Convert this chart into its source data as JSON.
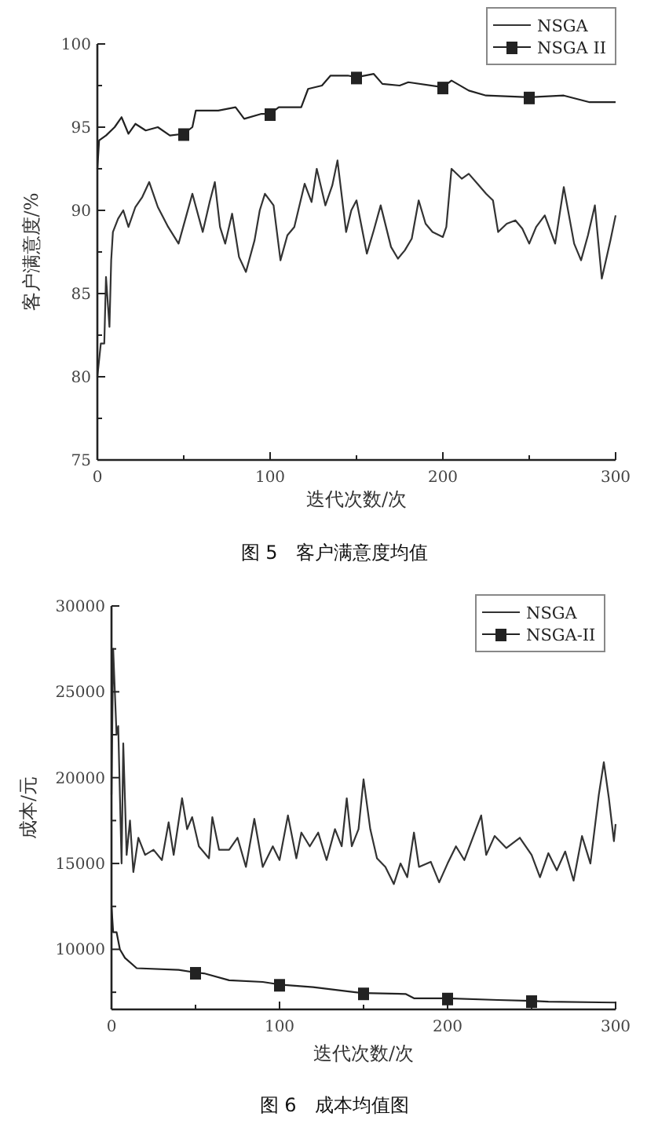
{
  "chart_data": [
    {
      "type": "line",
      "xlabel": "迭代次数/次",
      "ylabel": "客户满意度/%",
      "annotations": [
        "图 5　客户满意度均值"
      ],
      "xlim": [
        0,
        300
      ],
      "ylim": [
        75,
        100
      ],
      "xticks": [
        0,
        {
          "value": 50,
          "label": null
        },
        100,
        {
          "value": 150,
          "label": null
        },
        200,
        {
          "value": 250,
          "label": null
        },
        300
      ],
      "yticks": [
        75,
        {
          "value": 77.5,
          "label": null
        },
        80,
        {
          "value": 82.5,
          "label": null
        },
        85,
        {
          "value": 87.5,
          "label": null
        },
        90,
        {
          "value": 92.5,
          "label": null
        },
        95,
        {
          "value": 97.5,
          "label": null
        },
        100
      ],
      "legend": "top right",
      "grid": false,
      "series": [
        {
          "name": "NSGA",
          "color": "#333333",
          "x": [
            0,
            2,
            4,
            5,
            7,
            8,
            9,
            12,
            15,
            18,
            22,
            26,
            30,
            35,
            41,
            47,
            51,
            55,
            61,
            65,
            68,
            71,
            74,
            78,
            82,
            86,
            91,
            94,
            97,
            102,
            106,
            110,
            114,
            120,
            124,
            127,
            132,
            136,
            139,
            144,
            147,
            150,
            153,
            156,
            160,
            164,
            170,
            174,
            178,
            182,
            186,
            190,
            194,
            200,
            202,
            205,
            211,
            215,
            220,
            225,
            229,
            232,
            237,
            242,
            246,
            250,
            254,
            259,
            265,
            270,
            276,
            280,
            284,
            288,
            292,
            297,
            300
          ],
          "values": [
            80,
            82,
            82,
            86,
            83,
            87,
            88.7,
            89.5,
            90,
            89,
            90.2,
            90.8,
            91.7,
            90.2,
            89,
            88,
            89.5,
            91,
            88.7,
            90.5,
            91.7,
            89,
            88,
            89.8,
            87.2,
            86.3,
            88.2,
            90,
            91,
            90.3,
            87,
            88.5,
            89,
            91.6,
            90.5,
            92.5,
            90.3,
            91.5,
            93,
            88.7,
            90,
            90.6,
            89,
            87.4,
            88.8,
            90.3,
            87.8,
            87.1,
            87.6,
            88.3,
            90.6,
            89.2,
            88.7,
            88.4,
            89,
            92.5,
            91.9,
            92.2,
            91.6,
            91,
            90.6,
            88.7,
            89.2,
            89.4,
            88.9,
            88,
            89,
            89.7,
            88,
            91.4,
            88,
            87,
            88.5,
            90.3,
            85.9,
            88.2,
            89.7
          ]
        },
        {
          "name": "NSGA II",
          "color": "#222222",
          "x": [
            0,
            1,
            5,
            10,
            14,
            18,
            22,
            28,
            35,
            42,
            50,
            55,
            57,
            70,
            80,
            85,
            95,
            100,
            105,
            118,
            122,
            130,
            135,
            145,
            150,
            160,
            165,
            175,
            180,
            200,
            205,
            215,
            225,
            250,
            270,
            285,
            300
          ],
          "values": [
            92.5,
            94.2,
            94.5,
            95,
            95.6,
            94.6,
            95.2,
            94.8,
            95,
            94.5,
            94.6,
            95,
            96,
            96,
            96.2,
            95.5,
            95.8,
            95.8,
            96.2,
            96.2,
            97.3,
            97.5,
            98.1,
            98.1,
            98,
            98.2,
            97.6,
            97.5,
            97.7,
            97.4,
            97.8,
            97.2,
            96.9,
            96.8,
            96.9,
            96.5,
            96.5
          ]
        },
        {
          "type": "scatter",
          "marker": "square",
          "color": "#222222",
          "x": [
            50,
            100,
            150,
            200,
            250
          ],
          "values": [
            94.6,
            95.8,
            98,
            97.4,
            96.8
          ]
        }
      ]
    },
    {
      "type": "line",
      "xlabel": "迭代次数/次",
      "ylabel": "成本/元",
      "annotations": [
        "图 6　成本均值图"
      ],
      "xlim": [
        0,
        300
      ],
      "ylim": [
        6500,
        30000
      ],
      "xticks": [
        0,
        {
          "value": 50,
          "label": null
        },
        100,
        {
          "value": 150,
          "label": null
        },
        200,
        {
          "value": 250,
          "label": null
        },
        300
      ],
      "yticks": [
        {
          "value": 7500,
          "label": null
        },
        10000,
        {
          "value": 12500,
          "label": null
        },
        15000,
        {
          "value": 17500,
          "label": null
        },
        20000,
        {
          "value": 22500,
          "label": null
        },
        25000,
        {
          "value": 27500,
          "label": null
        },
        30000
      ],
      "legend": "top right",
      "grid": false,
      "series": [
        {
          "name": "NSGA",
          "color": "#333333",
          "x": [
            0,
            1,
            3,
            4,
            6,
            7,
            9,
            11,
            13,
            16,
            20,
            25,
            30,
            34,
            37,
            42,
            45,
            48,
            52,
            58,
            60,
            64,
            70,
            75,
            80,
            85,
            90,
            96,
            100,
            105,
            110,
            113,
            118,
            123,
            128,
            133,
            137,
            140,
            143,
            147,
            150,
            154,
            158,
            163,
            168,
            172,
            176,
            180,
            183,
            190,
            195,
            200,
            205,
            210,
            215,
            220,
            223,
            228,
            235,
            243,
            250,
            255,
            260,
            265,
            270,
            275,
            280,
            285,
            290,
            293,
            296,
            299,
            300
          ],
          "values": [
            19000,
            27500,
            22500,
            23000,
            15000,
            22000,
            15500,
            17500,
            14500,
            16500,
            15500,
            15800,
            15200,
            17400,
            15500,
            18800,
            17000,
            17700,
            16000,
            15300,
            17700,
            15800,
            15800,
            16500,
            14800,
            17600,
            14800,
            16000,
            15200,
            17800,
            15300,
            16800,
            16000,
            16800,
            15200,
            17000,
            16000,
            18800,
            16000,
            17000,
            19900,
            17000,
            15300,
            14800,
            13800,
            15000,
            14200,
            16800,
            14800,
            15100,
            13900,
            15000,
            16000,
            15200,
            16500,
            17800,
            15500,
            16600,
            15900,
            16500,
            15500,
            14200,
            15600,
            14600,
            15700,
            14000,
            16600,
            15000,
            19000,
            20900,
            18800,
            16300,
            17300
          ]
        },
        {
          "name": "NSGA-II",
          "color": "#222222",
          "x": [
            0,
            1,
            3,
            5,
            8,
            15,
            40,
            50,
            55,
            70,
            90,
            100,
            120,
            145,
            150,
            175,
            180,
            200,
            230,
            250,
            260,
            300
          ],
          "values": [
            12500,
            11000,
            11000,
            10000,
            9500,
            8900,
            8800,
            8650,
            8600,
            8200,
            8100,
            7950,
            7800,
            7500,
            7450,
            7400,
            7150,
            7150,
            7050,
            7000,
            6950,
            6900
          ]
        },
        {
          "type": "scatter",
          "marker": "square",
          "color": "#222222",
          "x": [
            50,
            100,
            150,
            200,
            250
          ],
          "values": [
            8650,
            7950,
            7450,
            7150,
            7000
          ]
        }
      ]
    }
  ]
}
